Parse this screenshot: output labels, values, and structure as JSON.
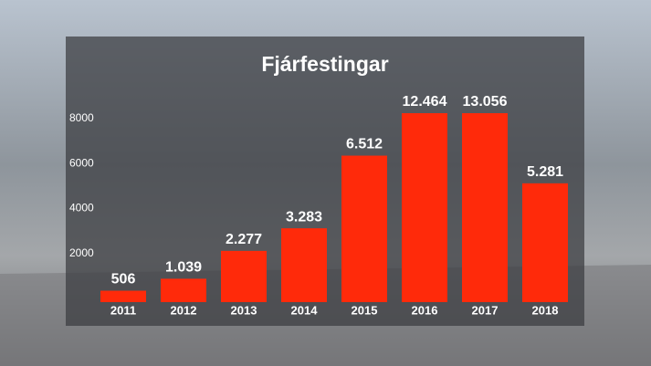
{
  "chart_data": {
    "type": "bar",
    "title": "Fjárfestingar",
    "categories": [
      "2011",
      "2012",
      "2013",
      "2014",
      "2015",
      "2016",
      "2017",
      "2018"
    ],
    "values": [
      506,
      1039,
      2277,
      3283,
      6512,
      12464,
      13056,
      5281
    ],
    "value_labels": [
      "506",
      "1.039",
      "2.277",
      "3.283",
      "6.512",
      "12.464",
      "13.056",
      "5.281"
    ],
    "color": "#ff2a0a",
    "ylim": [
      0,
      8400
    ],
    "yticks": [
      2000,
      4000,
      6000,
      8000
    ],
    "grid": false
  }
}
